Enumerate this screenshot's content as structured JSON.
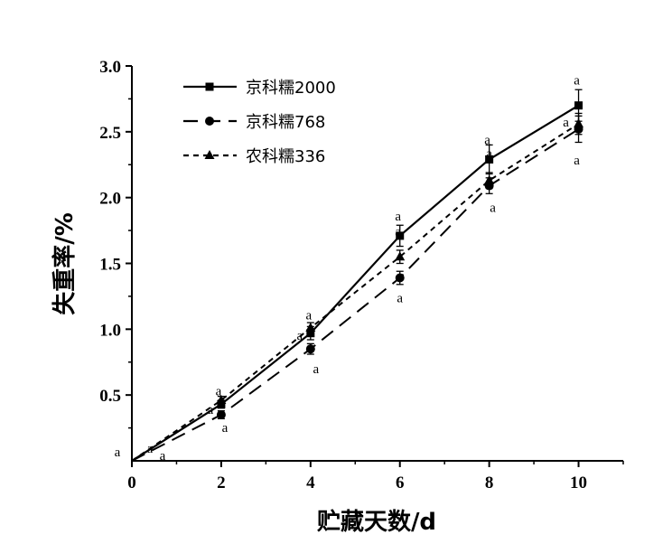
{
  "chart_data": {
    "type": "line",
    "xlabel": "贮藏天数/d",
    "ylabel": "失重率/%",
    "x": [
      0,
      2,
      4,
      6,
      8,
      10
    ],
    "xticks": [
      "0",
      "2",
      "4",
      "6",
      "8",
      "10"
    ],
    "yticks": [
      "0.5",
      "1.0",
      "1.5",
      "2.0",
      "2.5",
      "3.0"
    ],
    "xlim": [
      0,
      11
    ],
    "ylim": [
      0,
      3.0
    ],
    "legend_position": "top-left",
    "series": [
      {
        "name": "京科糯2000",
        "marker": "square",
        "line_style": "solid",
        "values": [
          0,
          0.43,
          0.97,
          1.71,
          2.29,
          2.7
        ],
        "errors": [
          0,
          0.03,
          0.05,
          0.08,
          0.11,
          0.12
        ],
        "sig": [
          "a",
          "a",
          "a",
          "a",
          "a",
          "a"
        ]
      },
      {
        "name": "京科糯768",
        "marker": "circle",
        "line_style": "dashed",
        "values": [
          0,
          0.35,
          0.85,
          1.39,
          2.09,
          2.52
        ],
        "errors": [
          0,
          0.03,
          0.04,
          0.05,
          0.06,
          0.1
        ],
        "sig": [
          "a",
          "a",
          "a",
          "a",
          "a",
          "a"
        ]
      },
      {
        "name": "农科糯336",
        "marker": "triangle",
        "line_style": "dotted",
        "values": [
          0,
          0.46,
          1.01,
          1.55,
          2.13,
          2.56
        ],
        "errors": [
          0,
          0.03,
          0.04,
          0.05,
          0.06,
          0.08
        ],
        "sig": [
          "a",
          "a",
          "a",
          "a",
          "a",
          "a"
        ]
      }
    ]
  }
}
